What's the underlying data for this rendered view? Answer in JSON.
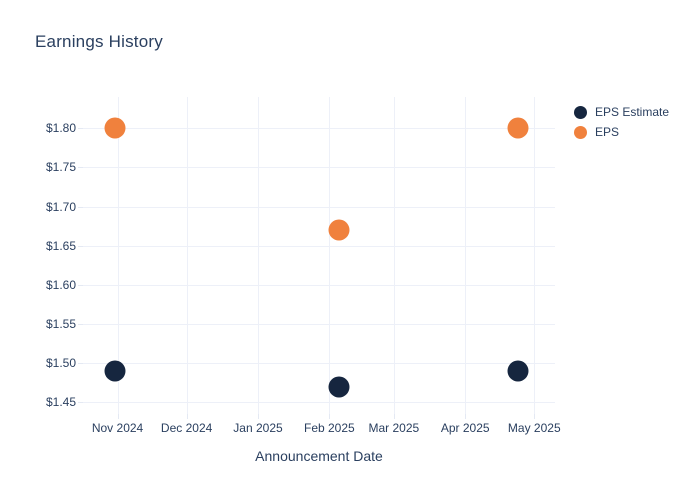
{
  "title": "Earnings History",
  "x_axis_title": "Announcement Date",
  "legend": {
    "items": [
      {
        "label": "EPS Estimate",
        "color": "#16263f"
      },
      {
        "label": "EPS",
        "color": "#f0813d"
      }
    ]
  },
  "colors": {
    "eps_estimate": "#16263f",
    "eps": "#f0813d",
    "gridline": "#edf0f8",
    "text": "#2a3f5f",
    "background": "#ffffff"
  },
  "chart_data": {
    "type": "scatter",
    "title": "Earnings History",
    "xlabel": "Announcement Date",
    "ylabel": "",
    "grid": true,
    "legend_position": "right",
    "x_range": [
      "2024-10-17",
      "2025-05-10"
    ],
    "y_range": [
      1.435,
      1.84
    ],
    "x_ticks": [
      {
        "date": "2024-11-01",
        "label": "Nov 2024"
      },
      {
        "date": "2024-12-01",
        "label": "Dec 2024"
      },
      {
        "date": "2025-01-01",
        "label": "Jan 2025"
      },
      {
        "date": "2025-02-01",
        "label": "Feb 2025"
      },
      {
        "date": "2025-03-01",
        "label": "Mar 2025"
      },
      {
        "date": "2025-04-01",
        "label": "Apr 2025"
      },
      {
        "date": "2025-05-01",
        "label": "May 2025"
      }
    ],
    "y_ticks": [
      {
        "value": 1.45,
        "label": "$1.45"
      },
      {
        "value": 1.5,
        "label": "$1.50"
      },
      {
        "value": 1.55,
        "label": "$1.55"
      },
      {
        "value": 1.6,
        "label": "$1.60"
      },
      {
        "value": 1.65,
        "label": "$1.65"
      },
      {
        "value": 1.7,
        "label": "$1.70"
      },
      {
        "value": 1.75,
        "label": "$1.75"
      },
      {
        "value": 1.8,
        "label": "$1.80"
      }
    ],
    "series": [
      {
        "name": "EPS Estimate",
        "color": "#16263f",
        "points": [
          {
            "x": "2024-10-31",
            "y": 1.49
          },
          {
            "x": "2025-02-05",
            "y": 1.47
          },
          {
            "x": "2025-04-24",
            "y": 1.49
          }
        ]
      },
      {
        "name": "EPS",
        "color": "#f0813d",
        "points": [
          {
            "x": "2024-10-31",
            "y": 1.8
          },
          {
            "x": "2025-02-05",
            "y": 1.67
          },
          {
            "x": "2025-04-24",
            "y": 1.8
          }
        ]
      }
    ]
  }
}
